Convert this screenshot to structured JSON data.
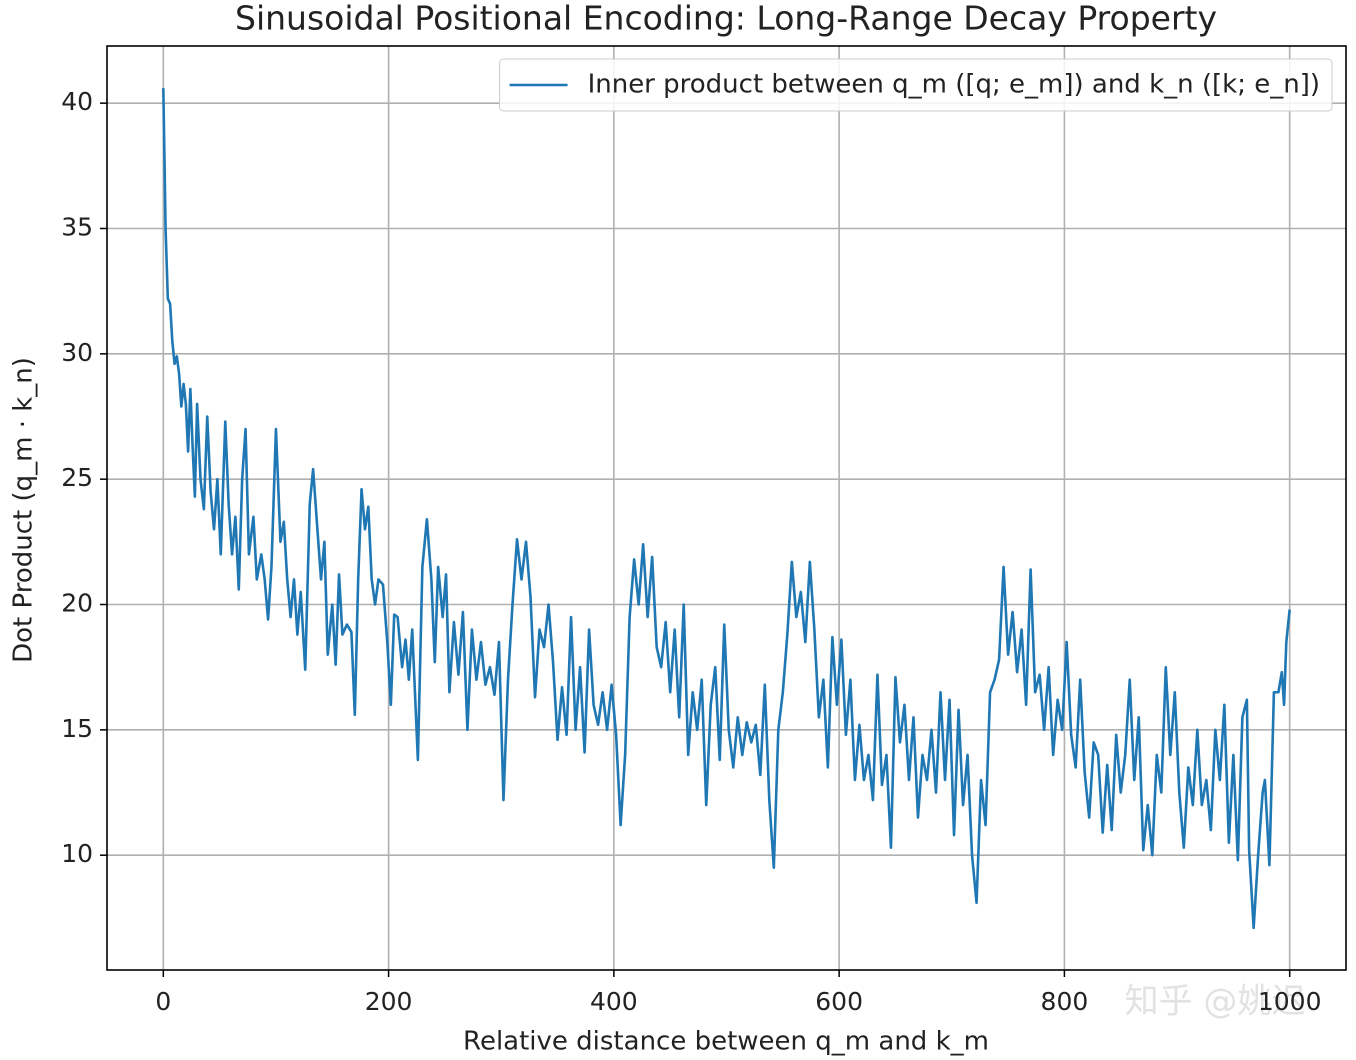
{
  "chart_data": {
    "type": "line",
    "title": "Sinusoidal Positional Encoding: Long-Range Decay Property",
    "x_label": "Relative distance between q_m and k_m",
    "y_label": "Dot Product (q_m · k_n)",
    "watermark": "知乎 @姚迟",
    "xlim": [
      -50,
      1050
    ],
    "ylim": [
      5.42,
      42.28
    ],
    "xticks": [
      0,
      200,
      400,
      600,
      800,
      1000
    ],
    "yticks": [
      10,
      15,
      20,
      25,
      30,
      35,
      40
    ],
    "grid": true,
    "legend": "upper right",
    "x": [
      0,
      2,
      4,
      6,
      8,
      10,
      12,
      14,
      16,
      18,
      20,
      22,
      24,
      26,
      28,
      30,
      33,
      36,
      39,
      42,
      45,
      48,
      51,
      55,
      58,
      61,
      64,
      67,
      70,
      73,
      76,
      80,
      83,
      87,
      90,
      93,
      96,
      100,
      104,
      107,
      110,
      113,
      116,
      119,
      122,
      126,
      130,
      133,
      136,
      140,
      143,
      146,
      150,
      153,
      156,
      159,
      163,
      167,
      170,
      173,
      176,
      179,
      182,
      185,
      188,
      191,
      195,
      199,
      202,
      205,
      208,
      212,
      215,
      218,
      221,
      226,
      230,
      234,
      238,
      241,
      244,
      248,
      251,
      254,
      258,
      262,
      266,
      270,
      274,
      278,
      282,
      286,
      290,
      294,
      298,
      302,
      306,
      310,
      314,
      318,
      322,
      326,
      330,
      334,
      338,
      342,
      346,
      350,
      354,
      358,
      362,
      366,
      370,
      374,
      378,
      382,
      386,
      390,
      394,
      398,
      402,
      406,
      410,
      414,
      418,
      422,
      426,
      430,
      434,
      438,
      442,
      446,
      450,
      454,
      458,
      462,
      466,
      470,
      474,
      478,
      482,
      486,
      490,
      494,
      498,
      502,
      506,
      510,
      514,
      518,
      522,
      526,
      530,
      534,
      538,
      542,
      546,
      550,
      554,
      558,
      562,
      566,
      570,
      574,
      578,
      582,
      586,
      590,
      594,
      598,
      602,
      606,
      610,
      614,
      618,
      622,
      626,
      630,
      634,
      638,
      642,
      646,
      650,
      654,
      658,
      662,
      666,
      670,
      674,
      678,
      682,
      686,
      690,
      694,
      698,
      702,
      706,
      710,
      714,
      718,
      722,
      726,
      730,
      734,
      738,
      742,
      746,
      750,
      754,
      758,
      762,
      766,
      770,
      774,
      778,
      782,
      786,
      790,
      794,
      798,
      802,
      806,
      810,
      814,
      818,
      822,
      826,
      830,
      834,
      838,
      842,
      846,
      850,
      854,
      858,
      862,
      866,
      870,
      874,
      878,
      882,
      886,
      890,
      894,
      898,
      902,
      906,
      910,
      914,
      918,
      922,
      926,
      930,
      934,
      938,
      942,
      946,
      950,
      954,
      958,
      962,
      964,
      968,
      972,
      976,
      978,
      982,
      986,
      990,
      993,
      995,
      997,
      1000
    ],
    "series": [
      {
        "name": "Inner product between q_m ([q; e_m]) and k_n ([k; e_n])",
        "color": "#1f77b4",
        "values": [
          40.6,
          35,
          32.2,
          32,
          30.5,
          29.6,
          29.9,
          29.2,
          27.9,
          28.8,
          28,
          26.1,
          28.6,
          26.3,
          24.3,
          28,
          25,
          23.8,
          27.5,
          24.5,
          23,
          25,
          22,
          27.3,
          24,
          22,
          23.5,
          20.6,
          25,
          27,
          22,
          23.5,
          21,
          22,
          21,
          19.4,
          21.5,
          27,
          22.5,
          23.3,
          21,
          19.5,
          21,
          18.8,
          20.5,
          17.4,
          24,
          25.4,
          23.5,
          21,
          22.5,
          18,
          20,
          17.6,
          21.2,
          18.8,
          19.2,
          18.9,
          15.6,
          21,
          24.6,
          23,
          23.9,
          21,
          20,
          21,
          20.8,
          18.4,
          16,
          19.6,
          19.5,
          17.5,
          18.6,
          17,
          19,
          13.8,
          21.5,
          23.4,
          21,
          17.7,
          21.5,
          19.5,
          21.2,
          16.5,
          19.3,
          17.2,
          19.7,
          15,
          19,
          17,
          18.5,
          16.8,
          17.5,
          16.4,
          18.5,
          12.2,
          17,
          20,
          22.6,
          21,
          22.5,
          20.3,
          16.3,
          19,
          18.3,
          20,
          17.7,
          14.6,
          16.7,
          14.8,
          19.5,
          15,
          17.5,
          14.1,
          19,
          16,
          15.2,
          16.5,
          15,
          16.8,
          14.8,
          11.2,
          14,
          19.5,
          21.8,
          20,
          22.4,
          19.5,
          21.9,
          18.3,
          17.5,
          19.3,
          16.5,
          19,
          15.5,
          20,
          14,
          16.5,
          15,
          17,
          12,
          16,
          17.5,
          13.8,
          19.2,
          15,
          13.5,
          15.5,
          14,
          15.3,
          14.5,
          15.2,
          13.2,
          16.8,
          12.2,
          9.5,
          15,
          16.5,
          18.8,
          21.7,
          19.5,
          20.5,
          18.5,
          21.7,
          19,
          15.5,
          17,
          13.5,
          18.7,
          16,
          18.6,
          14.8,
          17,
          13,
          15.2,
          13,
          14,
          12.2,
          17.2,
          12.8,
          14,
          10.3,
          17.1,
          14.5,
          16,
          13,
          15.5,
          11.5,
          14,
          13,
          15,
          12.5,
          16.5,
          13,
          16.2,
          10.8,
          15.8,
          12,
          14,
          10,
          8.1,
          13,
          11.2,
          16.5,
          17,
          17.8,
          21.5,
          18,
          19.7,
          17.3,
          19,
          16,
          21.4,
          16.5,
          17.2,
          15,
          17.5,
          14,
          16.2,
          15,
          18.5,
          14.8,
          13.5,
          17,
          13.3,
          11.5,
          14.5,
          14,
          10.9,
          13.6,
          11,
          14.8,
          12.5,
          14,
          17,
          13,
          15.5,
          10.2,
          12,
          10,
          14,
          12.5,
          17.5,
          14,
          16.5,
          12.5,
          10.3,
          13.5,
          12,
          15,
          12,
          13,
          11,
          15,
          13,
          16,
          10.5,
          14,
          9.8,
          15.5,
          16.2,
          10.2,
          7.1,
          10,
          12.5,
          13,
          9.6,
          16.5,
          16.5,
          17.3,
          16,
          18.5,
          19.8
        ]
      }
    ]
  }
}
